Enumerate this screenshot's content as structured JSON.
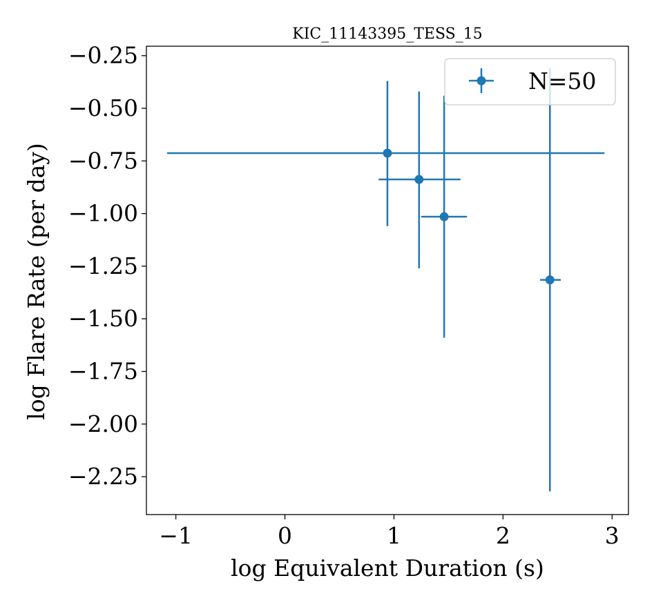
{
  "chart_data": {
    "type": "scatter",
    "title": "KIC_11143395_TESS_15",
    "xlabel": "log Equivalent Duration (s)",
    "ylabel": "log Flare Rate (per day)",
    "xlim": [
      -1.27,
      3.15
    ],
    "ylim": [
      -2.43,
      -0.205
    ],
    "xticks": [
      -1,
      0,
      1,
      2,
      3
    ],
    "xtick_labels": [
      "−1",
      "0",
      "1",
      "2",
      "3"
    ],
    "yticks": [
      -0.25,
      -0.5,
      -0.75,
      -1.0,
      -1.25,
      -1.5,
      -1.75,
      -2.0,
      -2.25
    ],
    "ytick_labels": [
      "−0.25",
      "−0.50",
      "−0.75",
      "−1.00",
      "−1.25",
      "−1.50",
      "−1.75",
      "−2.00",
      "−2.25"
    ],
    "grid": false,
    "legend": {
      "placement": "top-right",
      "entries": [
        "N=50"
      ]
    },
    "color": "#1f77b4",
    "series": [
      {
        "name": "N=50",
        "points": [
          {
            "x": 0.94,
            "y": -0.713,
            "xerr_low": 2.02,
            "xerr_high": 1.99,
            "yerr_low": 0.347,
            "yerr_high": 0.343
          },
          {
            "x": 1.23,
            "y": -0.838,
            "xerr_low": 0.37,
            "xerr_high": 0.38,
            "yerr_low": 0.422,
            "yerr_high": 0.418
          },
          {
            "x": 1.46,
            "y": -1.015,
            "xerr_low": 0.21,
            "xerr_high": 0.21,
            "yerr_low": 0.575,
            "yerr_high": 0.575
          },
          {
            "x": 2.43,
            "y": -1.315,
            "xerr_low": 0.09,
            "xerr_high": 0.1,
            "yerr_low": 1.005,
            "yerr_high": 1.005
          }
        ]
      }
    ]
  }
}
